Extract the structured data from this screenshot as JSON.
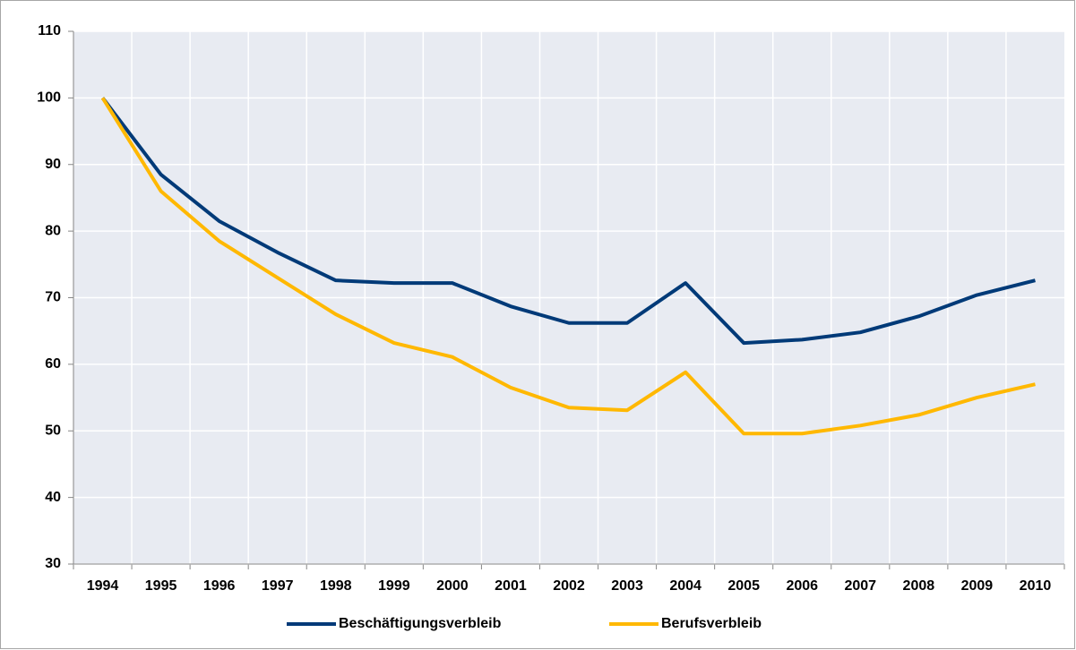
{
  "chart_data": {
    "type": "line",
    "categories": [
      "1994",
      "1995",
      "1996",
      "1997",
      "1998",
      "1999",
      "2000",
      "2001",
      "2002",
      "2003",
      "2004",
      "2005",
      "2006",
      "2007",
      "2008",
      "2009",
      "2010"
    ],
    "series": [
      {
        "name": "Beschäftigungsverbleib",
        "color": "#003a78",
        "values": [
          100,
          88.5,
          81.5,
          76.8,
          72.6,
          72.2,
          72.2,
          68.7,
          66.2,
          66.2,
          72.2,
          63.2,
          63.7,
          64.8,
          67.2,
          70.4,
          72.6
        ]
      },
      {
        "name": "Berufsverbleib",
        "color": "#ffb800",
        "values": [
          100,
          86,
          78.5,
          73,
          67.5,
          63.2,
          61.1,
          56.5,
          53.5,
          53.1,
          58.8,
          49.6,
          49.6,
          50.8,
          52.4,
          55,
          57
        ]
      }
    ],
    "ylim": [
      30,
      110
    ],
    "yticks": [
      30,
      40,
      50,
      60,
      70,
      80,
      90,
      100,
      110
    ],
    "grid": true,
    "legend": "bottom"
  }
}
